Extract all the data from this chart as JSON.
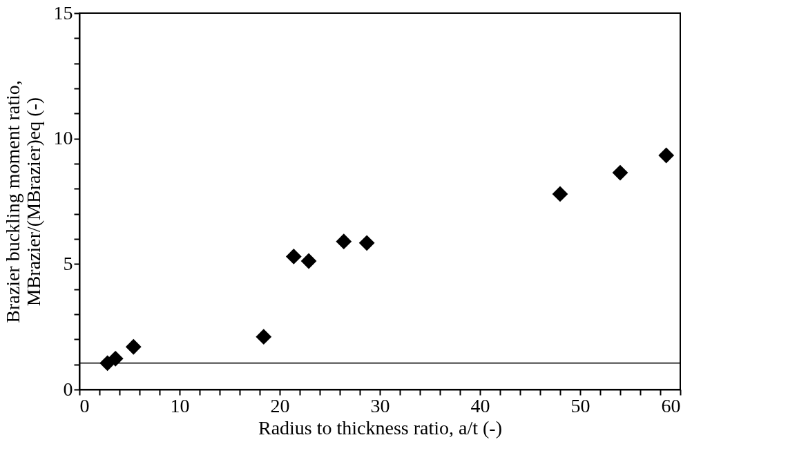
{
  "chart_data": {
    "type": "scatter",
    "xlabel": "Radius to thickness ratio, a/t (-)",
    "ylabel": "Brazier buckling moment ratio,\nMBrazier/(MBrazier)eq (-)",
    "x": [
      2.8,
      3.6,
      5.4,
      18.4,
      21.4,
      22.9,
      26.4,
      28.7,
      48.0,
      54.0,
      58.6
    ],
    "series": [
      {
        "color": "#000000",
        "values": [
          1.05,
          1.23,
          1.7,
          2.1,
          5.3,
          5.12,
          5.9,
          5.84,
          7.79,
          8.64,
          9.33
        ]
      }
    ],
    "marker": "diamond",
    "xlim": [
      0,
      60
    ],
    "ylim": [
      0,
      15
    ],
    "xticks": [
      0,
      {
        "value": 2,
        "label": null
      },
      {
        "value": 4,
        "label": null
      },
      {
        "value": 6,
        "label": null
      },
      {
        "value": 8,
        "label": null
      },
      10,
      {
        "value": 12,
        "label": null
      },
      {
        "value": 14,
        "label": null
      },
      {
        "value": 16,
        "label": null
      },
      {
        "value": 18,
        "label": null
      },
      20,
      {
        "value": 22,
        "label": null
      },
      {
        "value": 24,
        "label": null
      },
      {
        "value": 26,
        "label": null
      },
      {
        "value": 28,
        "label": null
      },
      30,
      {
        "value": 32,
        "label": null
      },
      {
        "value": 34,
        "label": null
      },
      {
        "value": 36,
        "label": null
      },
      {
        "value": 38,
        "label": null
      },
      40,
      {
        "value": 42,
        "label": null
      },
      {
        "value": 44,
        "label": null
      },
      {
        "value": 46,
        "label": null
      },
      {
        "value": 48,
        "label": null
      },
      50,
      {
        "value": 52,
        "label": null
      },
      {
        "value": 54,
        "label": null
      },
      {
        "value": 56,
        "label": null
      },
      {
        "value": 58,
        "label": null
      },
      60
    ],
    "yticks": [
      0,
      {
        "value": 1,
        "label": null
      },
      {
        "value": 2,
        "label": null
      },
      {
        "value": 3,
        "label": null
      },
      {
        "value": 4,
        "label": null
      },
      5,
      {
        "value": 6,
        "label": null
      },
      {
        "value": 7,
        "label": null
      },
      {
        "value": 8,
        "label": null
      },
      {
        "value": 9,
        "label": null
      },
      10,
      {
        "value": 11,
        "label": null
      },
      {
        "value": 12,
        "label": null
      },
      {
        "value": 13,
        "label": null
      },
      {
        "value": 14,
        "label": null
      },
      15
    ],
    "ref_lines": [
      {
        "axis": "y",
        "value": 1.05,
        "color": "#000000"
      }
    ],
    "grid": false,
    "legend": false
  }
}
